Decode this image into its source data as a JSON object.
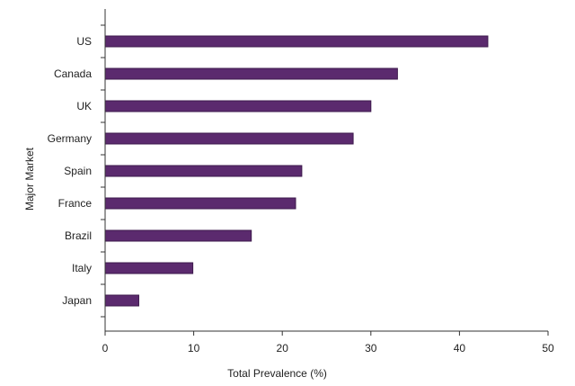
{
  "chart_data": {
    "type": "bar",
    "orientation": "horizontal",
    "categories": [
      "US",
      "Canada",
      "UK",
      "Germany",
      "Spain",
      "France",
      "Brazil",
      "Italy",
      "Japan"
    ],
    "values": [
      43.2,
      33.0,
      30.0,
      28.0,
      22.2,
      21.5,
      16.5,
      9.9,
      3.8
    ],
    "xlabel": "Total Prevalence (%)",
    "ylabel": "Major Market",
    "xlim": [
      0,
      50
    ],
    "xticks": [
      0,
      10,
      20,
      30,
      40,
      50
    ],
    "grid": false,
    "bar_color": "#5b2a6e",
    "bar_edge_color": "#3d1a4c"
  }
}
